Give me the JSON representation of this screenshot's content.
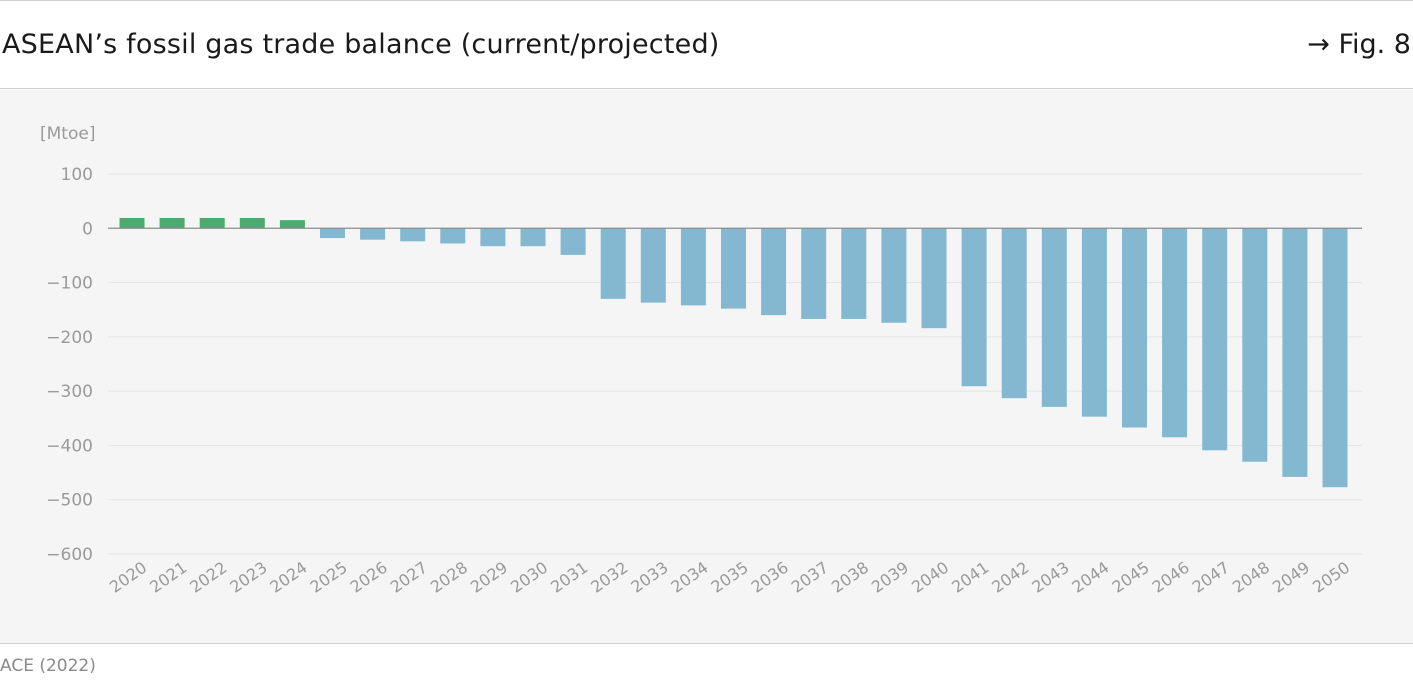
{
  "header": {
    "title": "ASEAN’s fossil gas trade balance (current/projected)",
    "figure_ref": "→ Fig. 8"
  },
  "footer": {
    "source": "ACE (2022)"
  },
  "colors": {
    "current": "#4daa70",
    "projected": "#84b8d0",
    "grid": "#e4e4e4",
    "zero_line": "#8c8c8c",
    "tick_text": "#9a9a9a",
    "panel_bg": "#f5f5f5"
  },
  "chart_data": {
    "type": "bar",
    "title": "",
    "xlabel": "",
    "ylabel": "[Mtoe]",
    "ylim": [
      -600,
      100
    ],
    "yticks": [
      100,
      0,
      -100,
      -200,
      -300,
      -400,
      -500,
      -600
    ],
    "ytick_labels": [
      "100",
      "0",
      "−100",
      "−200",
      "−300",
      "−400",
      "−500",
      "−600"
    ],
    "grid": true,
    "categories": [
      "2020",
      "2021",
      "2022",
      "2023",
      "2024",
      "2025",
      "2026",
      "2027",
      "2028",
      "2029",
      "2030",
      "2031",
      "2032",
      "2033",
      "2034",
      "2035",
      "2036",
      "2037",
      "2038",
      "2039",
      "2040",
      "2041",
      "2042",
      "2043",
      "2044",
      "2045",
      "2046",
      "2047",
      "2048",
      "2049",
      "2050"
    ],
    "values": [
      19,
      19,
      19,
      19,
      15,
      -18,
      -21,
      -24,
      -28,
      -33,
      -33,
      -49,
      -130,
      -137,
      -142,
      -148,
      -160,
      -167,
      -167,
      -174,
      -184,
      -291,
      -313,
      -329,
      -347,
      -367,
      -385,
      -409,
      -430,
      -458,
      -477
    ],
    "bar_groups": [
      "current",
      "current",
      "current",
      "current",
      "current",
      "projected",
      "projected",
      "projected",
      "projected",
      "projected",
      "projected",
      "projected",
      "projected",
      "projected",
      "projected",
      "projected",
      "projected",
      "projected",
      "projected",
      "projected",
      "projected",
      "projected",
      "projected",
      "projected",
      "projected",
      "projected",
      "projected",
      "projected",
      "projected",
      "projected",
      "projected"
    ]
  }
}
